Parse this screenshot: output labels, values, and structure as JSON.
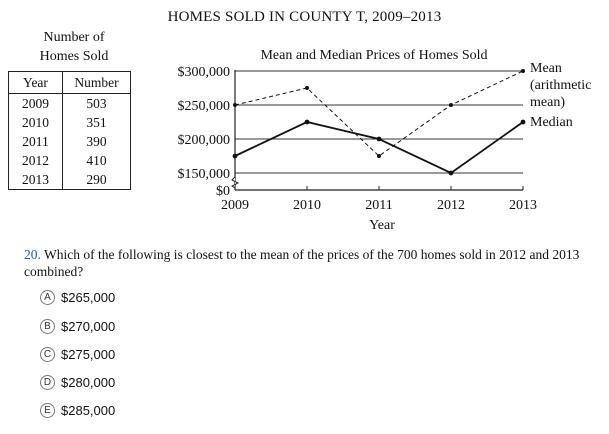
{
  "title": "HOMES SOLD IN COUNTY T, 2009–2013",
  "table": {
    "caption_line1": "Number of",
    "caption_line2": "Homes Sold",
    "headers": [
      "Year",
      "Number"
    ],
    "rows": [
      [
        "2009",
        "503"
      ],
      [
        "2010",
        "351"
      ],
      [
        "2011",
        "390"
      ],
      [
        "2012",
        "410"
      ],
      [
        "2013",
        "290"
      ]
    ]
  },
  "chart_data": {
    "type": "line",
    "title": "Mean and Median Prices of Homes Sold",
    "xlabel": "Year",
    "ylabel": "",
    "x": [
      "2009",
      "2010",
      "2011",
      "2012",
      "2013"
    ],
    "ylim": [
      0,
      300000
    ],
    "yticks": [
      "$0",
      "$150,000",
      "$200,000",
      "$250,000",
      "$300,000"
    ],
    "ytick_values": [
      0,
      150000,
      200000,
      250000,
      300000
    ],
    "axis_break": true,
    "series": [
      {
        "name": "Mean",
        "name_line2": "(arithmetic",
        "name_line3": "mean)",
        "style": "dashed",
        "values": [
          250000,
          275000,
          175000,
          250000,
          300000
        ]
      },
      {
        "name": "Median",
        "style": "solid",
        "values": [
          175000,
          225000,
          200000,
          150000,
          225000
        ]
      }
    ],
    "grid": true,
    "legend": "right"
  },
  "question": {
    "number": "20.",
    "text": "Which of the following is closest to the mean of the prices of the 700 homes sold in 2012 and 2013 combined?",
    "choices": [
      {
        "letter": "A",
        "text": "$265,000"
      },
      {
        "letter": "B",
        "text": "$270,000"
      },
      {
        "letter": "C",
        "text": "$275,000"
      },
      {
        "letter": "D",
        "text": "$280,000"
      },
      {
        "letter": "E",
        "text": "$285,000"
      }
    ]
  }
}
